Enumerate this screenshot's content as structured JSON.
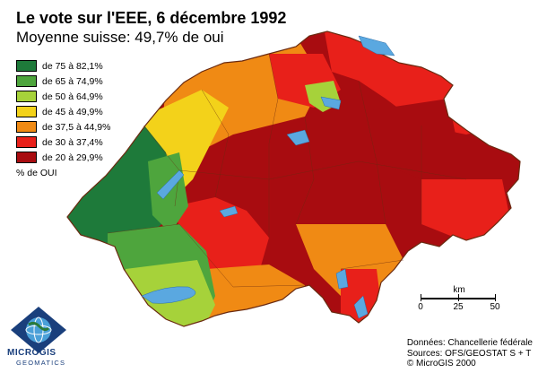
{
  "title": "Le vote sur l'EEE, 6 décembre 1992",
  "subtitle": "Moyenne suisse: 49,7% de oui",
  "legend": {
    "items": [
      {
        "label": "de 75 à 82,1%",
        "color": "#1e7a3a"
      },
      {
        "label": "de 65 à 74,9%",
        "color": "#4ea53d"
      },
      {
        "label": "de 50 à 64,9%",
        "color": "#a6d23a"
      },
      {
        "label": "de 45 à 49,9%",
        "color": "#f3d21a"
      },
      {
        "label": "de 37,5 à 44,9%",
        "color": "#f08a14"
      },
      {
        "label": "de 30 à 37,4%",
        "color": "#e8201a"
      },
      {
        "label": "de 20 à 29,9%",
        "color": "#a80c10"
      }
    ],
    "note": "% de OUI"
  },
  "scale": {
    "unit": "km",
    "ticks": [
      "0",
      "25",
      "50"
    ]
  },
  "credits": {
    "line1": "Données: Chancellerie fédérale",
    "line2": "Sources: OFS/GEOSTAT S + T",
    "line3": "© MicroGIS 2000"
  },
  "logo": {
    "brand": "MICROGIS",
    "sub": "GEOMATICS"
  },
  "colors": {
    "water": "#5aa8e0",
    "border": "#6a2a10"
  }
}
